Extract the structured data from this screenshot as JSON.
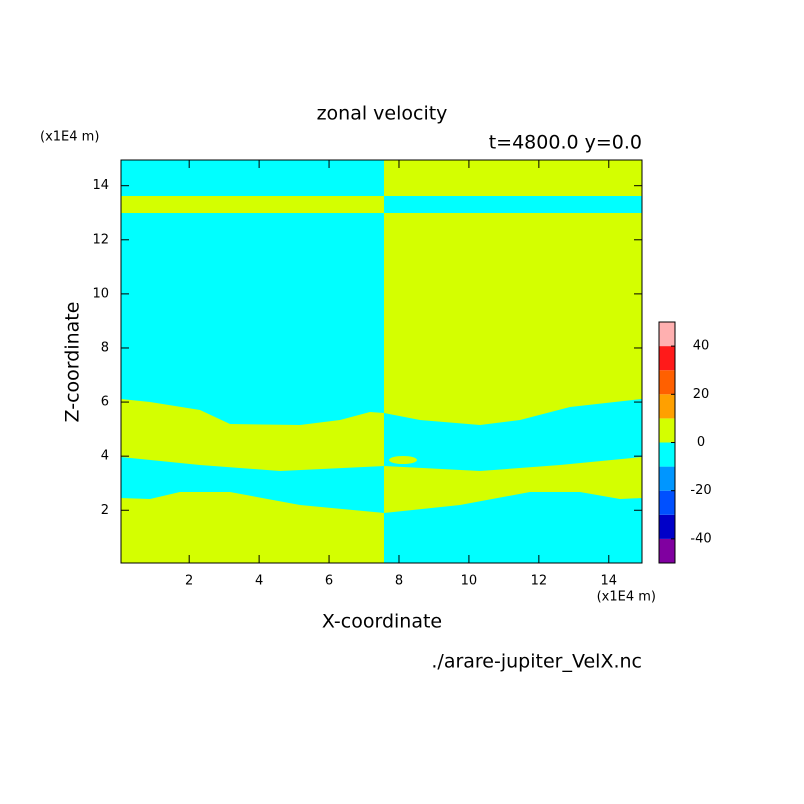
{
  "chart_data": {
    "type": "contour",
    "title": "zonal velocity",
    "subtitle": "t=4800.0 y=0.0",
    "x_label": "X-coordinate",
    "y_label": "Z-coordinate",
    "x_unit": "(x1E4 m)",
    "y_unit": "(x1E4 m)",
    "source": "./arare-jupiter_VelX.nc",
    "xlim": [
      0.05,
      14.95
    ],
    "ylim": [
      0.05,
      14.95
    ],
    "xticks": [
      2,
      4,
      6,
      8,
      10,
      12,
      14
    ],
    "yticks": [
      2,
      4,
      6,
      8,
      10,
      12,
      14
    ],
    "levels": [
      -50,
      -40,
      -30,
      -20,
      -10,
      0,
      10,
      20,
      30,
      40,
      50
    ],
    "colors": [
      "#8000a0",
      "#0000c8",
      "#0050ff",
      "#0096ff",
      "#00ffff",
      "#d4ff00",
      "#ffa000",
      "#ff6000",
      "#ff1a1a",
      "#ffb0b0"
    ],
    "colorbar_ticks": [
      -40,
      -20,
      0,
      20,
      40
    ]
  }
}
